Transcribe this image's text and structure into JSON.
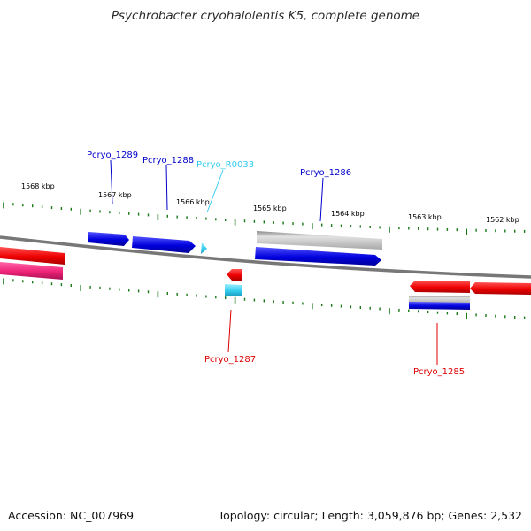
{
  "title": "Psychrobacter cryohalolentis K5, complete genome",
  "accession_text": "Accession: NC_007969",
  "summary_text": "Topology: circular; Length: 3,059,876 bp; Genes: 2,532",
  "colors": {
    "forward_cds": "#0000dd",
    "reverse_cds": "#ee0000",
    "rna": "#33ccee",
    "pseudogene": "#b0b0b0",
    "other_feature": "#ee2277",
    "tick": "#1a7a1a",
    "backbone": "#7a7a7a"
  },
  "scale_labels": [
    {
      "name": "scale-label-1568",
      "text": "1568 kbp"
    },
    {
      "name": "scale-label-1567",
      "text": "1567 kbp"
    },
    {
      "name": "scale-label-1566",
      "text": "1566 kbp"
    },
    {
      "name": "scale-label-1565",
      "text": "1565 kbp"
    },
    {
      "name": "scale-label-1564",
      "text": "1564 kbp"
    },
    {
      "name": "scale-label-1563",
      "text": "1563 kbp"
    },
    {
      "name": "scale-label-1562",
      "text": "1562 kbp"
    }
  ],
  "gene_labels": [
    {
      "name": "gene-label-pcryo-1289",
      "text": "Pcryo_1289"
    },
    {
      "name": "gene-label-pcryo-1288",
      "text": "Pcryo_1288"
    },
    {
      "name": "gene-label-pcryo-r0033",
      "text": "Pcryo_R0033"
    },
    {
      "name": "gene-label-pcryo-1286",
      "text": "Pcryo_1286"
    },
    {
      "name": "gene-label-pcryo-1287",
      "text": "Pcryo_1287"
    },
    {
      "name": "gene-label-pcryo-1285",
      "text": "Pcryo_1285"
    }
  ]
}
